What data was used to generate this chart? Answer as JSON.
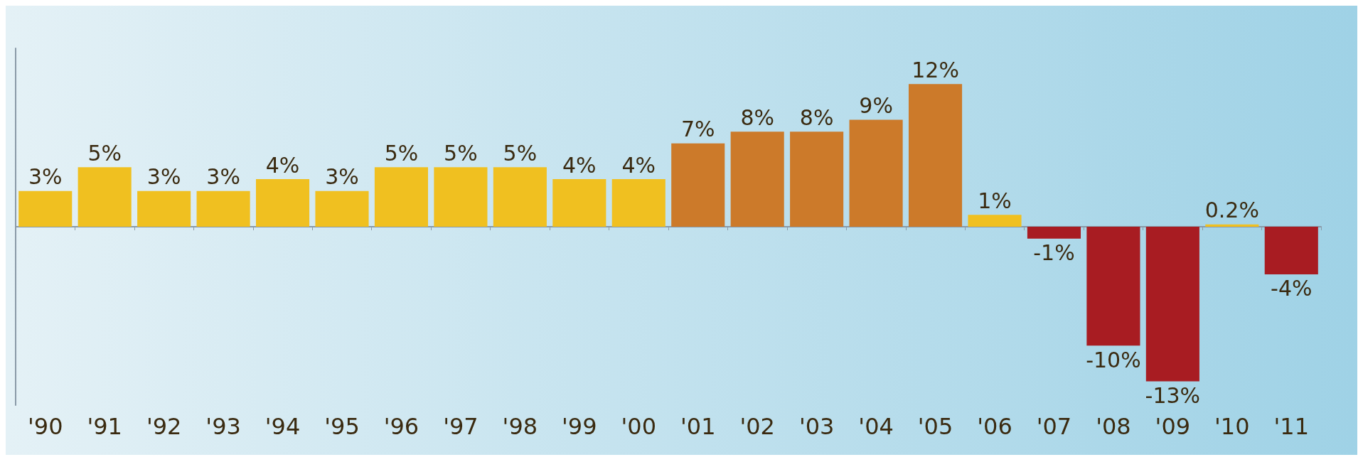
{
  "chart_data": {
    "type": "bar",
    "categories": [
      "'90",
      "'91",
      "'92",
      "'93",
      "'94",
      "'95",
      "'96",
      "'97",
      "'98",
      "'99",
      "'00",
      "'01",
      "'02",
      "'03",
      "'04",
      "'05",
      "'06",
      "'07",
      "'08",
      "'09",
      "'10",
      "'11"
    ],
    "values": [
      3,
      5,
      3,
      3,
      4,
      3,
      5,
      5,
      5,
      4,
      4,
      7,
      8,
      8,
      9,
      12,
      1,
      -1,
      -10,
      -13,
      0.2,
      -4
    ],
    "value_labels": [
      "3%",
      "5%",
      "3%",
      "3%",
      "4%",
      "3%",
      "5%",
      "5%",
      "5%",
      "4%",
      "4%",
      "7%",
      "8%",
      "8%",
      "9%",
      "12%",
      "1%",
      "-1%",
      "-10%",
      "-13%",
      "0.2%",
      "-4%"
    ],
    "colors": [
      "#f0c020",
      "#f0c020",
      "#f0c020",
      "#f0c020",
      "#f0c020",
      "#f0c020",
      "#f0c020",
      "#f0c020",
      "#f0c020",
      "#f0c020",
      "#f0c020",
      "#cc7a2a",
      "#cc7a2a",
      "#cc7a2a",
      "#cc7a2a",
      "#cc7a2a",
      "#f0c020",
      "#a81c22",
      "#a81c22",
      "#a81c22",
      "#f0c020",
      "#a81c22"
    ],
    "tick_labels": "x"
  }
}
